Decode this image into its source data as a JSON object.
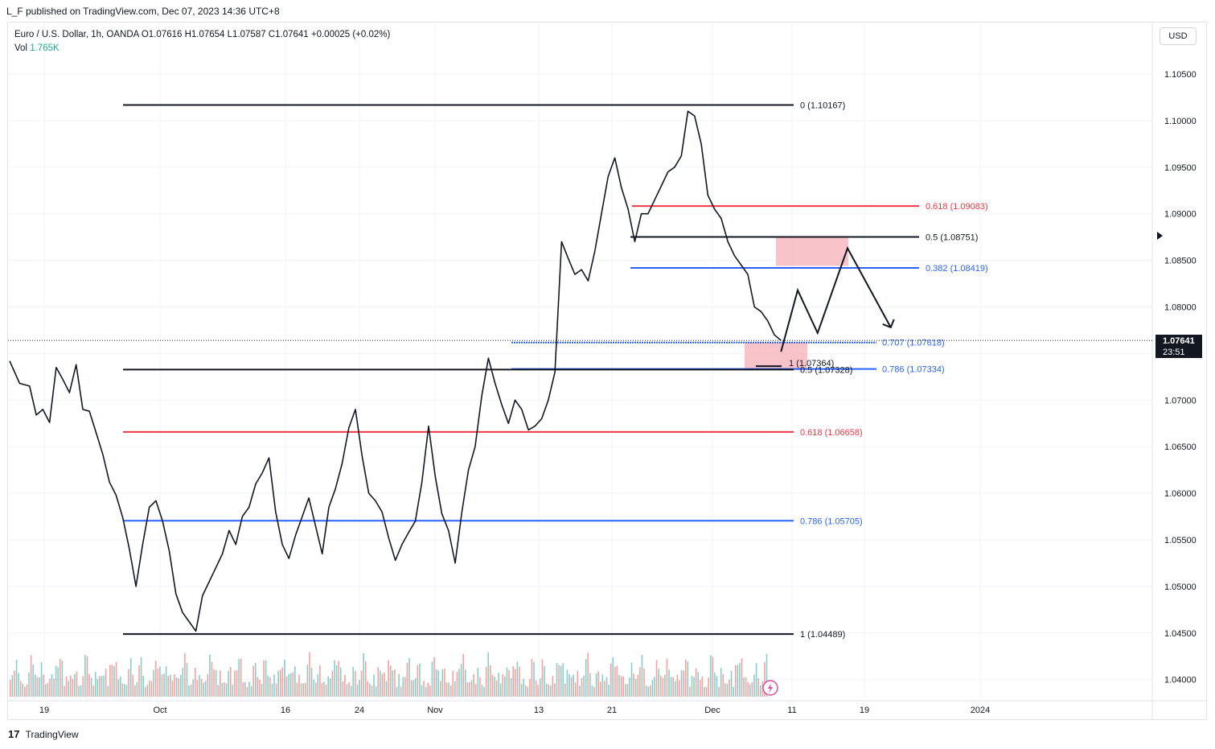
{
  "header": {
    "publisher": "L_F published on TradingView.com, Dec 07, 2023 14:36 UTC+8"
  },
  "legend": {
    "line1": "Euro / U.S. Dollar, 1h, OANDA  O1.07616  H1.07654  L1.07587  C1.07641  +0.00025 (+0.02%)",
    "vol_label": "Vol",
    "vol_value": "1.765K"
  },
  "currency_button": "USD",
  "price_tag": {
    "price": "1.07641",
    "countdown": "23:51"
  },
  "footer": {
    "logo": "17",
    "brand": "TradingView"
  },
  "colors": {
    "candle": "#131722",
    "volume_up": "#26a69a",
    "volume_down": "#ef5350",
    "fib_black": "#131722",
    "fib_red": "#f23645",
    "fib_blue": "#2962ff",
    "zone_pink": "#f7b9c0"
  },
  "chart_data": {
    "type": "line",
    "title": "Euro / U.S. Dollar, 1h, OANDA",
    "symbol": "EURUSD",
    "y_axis": {
      "ticks": [
        "1.10500",
        "1.10000",
        "1.09500",
        "1.09000",
        "1.08500",
        "1.08000",
        "1.07500",
        "1.07000",
        "1.06500",
        "1.06000",
        "1.05500",
        "1.05000",
        "1.04500",
        "1.04000"
      ],
      "range": [
        1.0375,
        1.1085
      ]
    },
    "x_axis": {
      "ticks": [
        "19",
        "Oct",
        "16",
        "24",
        "Nov",
        "13",
        "21",
        "Dec",
        "11",
        "19",
        "2024"
      ]
    },
    "series": [
      {
        "type": "price",
        "points": [
          [
            0,
            1.0742
          ],
          [
            3,
            1.0718
          ],
          [
            6,
            1.0715
          ],
          [
            8,
            1.0684
          ],
          [
            10,
            1.069
          ],
          [
            12,
            1.0676
          ],
          [
            14,
            1.0735
          ],
          [
            16,
            1.0722
          ],
          [
            18,
            1.0708
          ],
          [
            20,
            1.0738
          ],
          [
            22,
            1.069
          ],
          [
            24,
            1.0688
          ],
          [
            26,
            1.0665
          ],
          [
            28,
            1.0642
          ],
          [
            30,
            1.0612
          ],
          [
            32,
            1.0598
          ],
          [
            34,
            1.0574
          ],
          [
            36,
            1.054
          ],
          [
            38,
            1.05
          ],
          [
            40,
            1.0545
          ],
          [
            42,
            1.0585
          ],
          [
            44,
            1.0592
          ],
          [
            46,
            1.057
          ],
          [
            48,
            1.0538
          ],
          [
            50,
            1.0492
          ],
          [
            52,
            1.0472
          ],
          [
            54,
            1.0462
          ],
          [
            56,
            1.0452
          ],
          [
            58,
            1.049
          ],
          [
            60,
            1.0505
          ],
          [
            62,
            1.052
          ],
          [
            64,
            1.0535
          ],
          [
            66,
            1.056
          ],
          [
            68,
            1.0545
          ],
          [
            70,
            1.0575
          ],
          [
            72,
            1.0585
          ],
          [
            74,
            1.061
          ],
          [
            76,
            1.0622
          ],
          [
            78,
            1.0638
          ],
          [
            80,
            1.058
          ],
          [
            82,
            1.0545
          ],
          [
            84,
            1.053
          ],
          [
            86,
            1.0555
          ],
          [
            88,
            1.0575
          ],
          [
            90,
            1.0595
          ],
          [
            92,
            1.0565
          ],
          [
            94,
            1.0535
          ],
          [
            96,
            1.0585
          ],
          [
            98,
            1.0605
          ],
          [
            100,
            1.0632
          ],
          [
            102,
            1.067
          ],
          [
            104,
            1.069
          ],
          [
            106,
            1.064
          ],
          [
            108,
            1.06
          ],
          [
            110,
            1.0592
          ],
          [
            112,
            1.058
          ],
          [
            114,
            1.0552
          ],
          [
            116,
            1.0528
          ],
          [
            118,
            1.0545
          ],
          [
            120,
            1.0558
          ],
          [
            122,
            1.057
          ],
          [
            124,
            1.0612
          ],
          [
            126,
            1.0672
          ],
          [
            128,
            1.0618
          ],
          [
            130,
            1.0578
          ],
          [
            132,
            1.056
          ],
          [
            134,
            1.0525
          ],
          [
            136,
            1.058
          ],
          [
            138,
            1.0625
          ],
          [
            140,
            1.065
          ],
          [
            142,
            1.0705
          ],
          [
            144,
            1.0745
          ],
          [
            146,
            1.0718
          ],
          [
            148,
            1.0695
          ],
          [
            150,
            1.0675
          ],
          [
            152,
            1.07
          ],
          [
            154,
            1.069
          ],
          [
            156,
            1.0668
          ],
          [
            158,
            1.0672
          ],
          [
            160,
            1.068
          ],
          [
            162,
            1.07
          ],
          [
            164,
            1.073
          ],
          [
            166,
            1.087
          ],
          [
            168,
            1.0852
          ],
          [
            170,
            1.0835
          ],
          [
            172,
            1.084
          ],
          [
            174,
            1.0828
          ],
          [
            176,
            1.086
          ],
          [
            178,
            1.09
          ],
          [
            180,
            1.094
          ],
          [
            182,
            1.096
          ],
          [
            184,
            1.0928
          ],
          [
            186,
            1.0905
          ],
          [
            188,
            1.087
          ],
          [
            190,
            1.09
          ],
          [
            192,
            1.09
          ],
          [
            194,
            1.0915
          ],
          [
            196,
            1.093
          ],
          [
            198,
            1.0945
          ],
          [
            200,
            1.095
          ],
          [
            202,
            1.0962
          ],
          [
            204,
            1.101
          ],
          [
            206,
            1.1005
          ],
          [
            208,
            1.0975
          ],
          [
            210,
            1.092
          ],
          [
            212,
            1.0905
          ],
          [
            214,
            1.0895
          ],
          [
            216,
            1.087
          ],
          [
            218,
            1.0855
          ],
          [
            220,
            1.0845
          ],
          [
            222,
            1.0835
          ],
          [
            224,
            1.08
          ],
          [
            226,
            1.0795
          ],
          [
            228,
            1.0785
          ],
          [
            230,
            1.077
          ],
          [
            232,
            1.0764
          ]
        ]
      },
      {
        "type": "forecast-path",
        "points": [
          [
            232,
            1.0752
          ],
          [
            237,
            1.0818
          ],
          [
            243,
            1.0772
          ],
          [
            252,
            1.0863
          ],
          [
            265,
            1.0778
          ]
        ]
      }
    ],
    "fib_levels": [
      {
        "label": "0 (1.10167)",
        "value": 1.10167,
        "color": "black"
      },
      {
        "label": "0.618 (1.09083)",
        "value": 1.09083,
        "color": "red"
      },
      {
        "label": "0.5 (1.08751)",
        "value": 1.08751,
        "color": "black"
      },
      {
        "label": "0.382 (1.08419)",
        "value": 1.08419,
        "color": "blue"
      },
      {
        "label": "0.707 (1.07618)",
        "value": 1.07618,
        "color": "blue"
      },
      {
        "label": "0.786 (1.07334)",
        "value": 1.07334,
        "color": "blue"
      },
      {
        "label": "0.5 (1.07328)",
        "value": 1.07328,
        "color": "black"
      },
      {
        "label": "1 (1.07364)",
        "value": 1.07364,
        "color": "black"
      },
      {
        "label": "0.618 (1.06658)",
        "value": 1.06658,
        "color": "red"
      },
      {
        "label": "0.786 (1.05705)",
        "value": 1.05705,
        "color": "blue"
      },
      {
        "label": "1 (1.04489)",
        "value": 1.04489,
        "color": "black"
      }
    ],
    "current_price": 1.07641,
    "grid": true
  }
}
